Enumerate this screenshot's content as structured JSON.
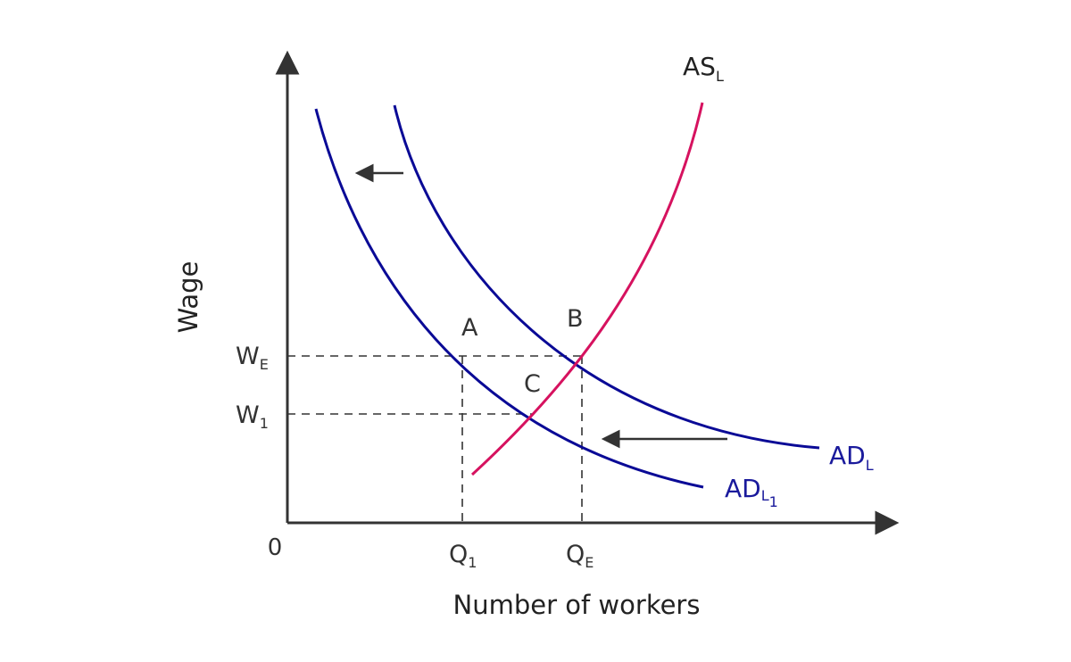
{
  "colors": {
    "axis": "#333333",
    "demand": "#0a0a96",
    "supply": "#d6125f",
    "guide": "#333333"
  },
  "axes": {
    "origin_label": "0",
    "x_label": "Number of workers",
    "y_label": "Wage"
  },
  "ticks": {
    "y": [
      {
        "main": "W",
        "sub": "E"
      },
      {
        "main": "W",
        "sub": "1"
      }
    ],
    "x": [
      {
        "main": "Q",
        "sub": "1"
      },
      {
        "main": "Q",
        "sub": "E"
      }
    ]
  },
  "curves": {
    "supply": {
      "main": "AS",
      "sub": "L"
    },
    "demand_original": {
      "main": "AD",
      "sub": "L"
    },
    "demand_shifted": {
      "main": "AD",
      "sub": "L",
      "subsub": "1"
    }
  },
  "points": {
    "a": "A",
    "b": "B",
    "c": "C"
  },
  "arrows": [
    {
      "meaning": "leftward shift of demand curve",
      "icon": "left-arrow-icon"
    },
    {
      "meaning": "leftward shift of demand curve",
      "icon": "left-arrow-icon"
    }
  ]
}
